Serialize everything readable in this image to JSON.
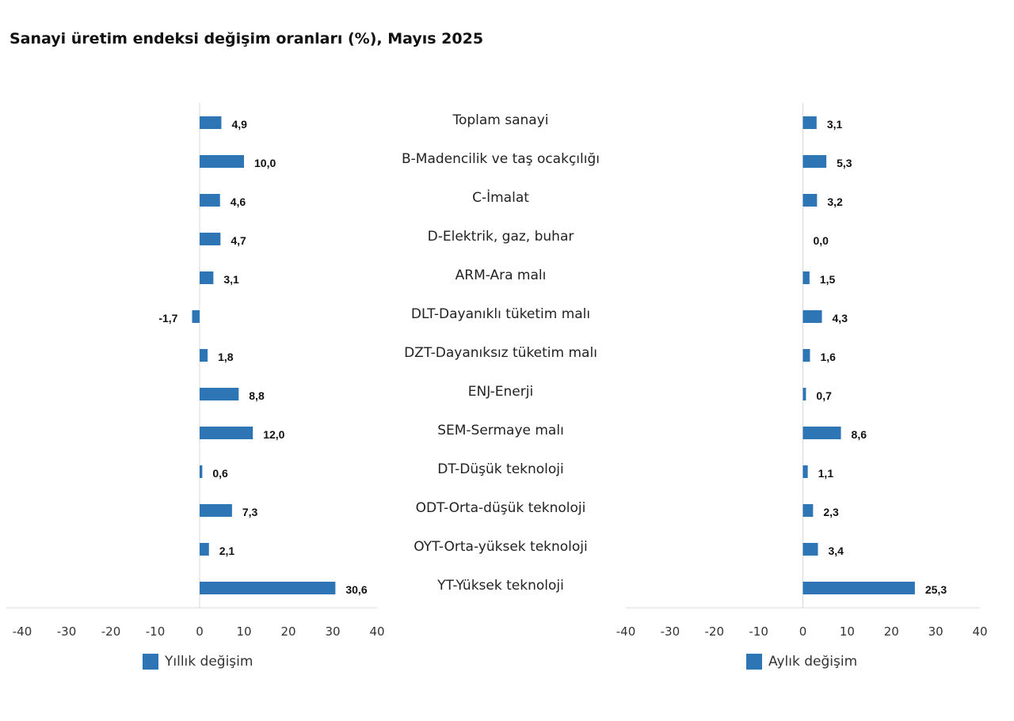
{
  "chart_data": {
    "type": "bar",
    "orientation": "horizontal",
    "title": "Sanayi üretim endeksi değişim oranları (%), Mayıs 2025",
    "categories": [
      "Toplam sanayi",
      "B-Madencilik ve taş ocakçılığı",
      "C-İmalat",
      "D-Elektrik, gaz, buhar",
      "ARM-Ara malı",
      "DLT-Dayanıklı tüketim malı",
      "DZT-Dayanıksız tüketim malı",
      "ENJ-Enerji",
      "SEM-Sermaye malı",
      "DT-Düşük teknoloji",
      "ODT-Orta-düşük teknoloji",
      "OYT-Orta-yüksek teknoloji",
      "YT-Yüksek teknoloji"
    ],
    "series": [
      {
        "name": "Yıllık değişim",
        "values": [
          4.9,
          10.0,
          4.6,
          4.7,
          3.1,
          -1.7,
          1.8,
          8.8,
          12.0,
          0.6,
          7.3,
          2.1,
          30.6
        ],
        "labels": [
          "4,9",
          "10,0",
          "4,6",
          "4,7",
          "3,1",
          "-1,7",
          "1,8",
          "8,8",
          "12,0",
          "0,6",
          "7,3",
          "2,1",
          "30,6"
        ]
      },
      {
        "name": "Aylık değişim",
        "values": [
          3.1,
          5.3,
          3.2,
          0.0,
          1.5,
          4.3,
          1.6,
          0.7,
          8.6,
          1.1,
          2.3,
          3.4,
          25.3
        ],
        "labels": [
          "3,1",
          "5,3",
          "3,2",
          "0,0",
          "1,5",
          "4,3",
          "1,6",
          "0,7",
          "8,6",
          "1,1",
          "2,3",
          "3,4",
          "25,3"
        ]
      }
    ],
    "xlim": [
      -40,
      40
    ],
    "ticks": [
      -40,
      -30,
      -20,
      -10,
      0,
      10,
      20,
      30,
      40
    ],
    "tick_labels": [
      "-40",
      "-30",
      "-20",
      "-10",
      "0",
      "10",
      "20",
      "30",
      "40"
    ],
    "grid": false,
    "legend_position": "bottom-left",
    "bar_color": "#2e75b6"
  }
}
